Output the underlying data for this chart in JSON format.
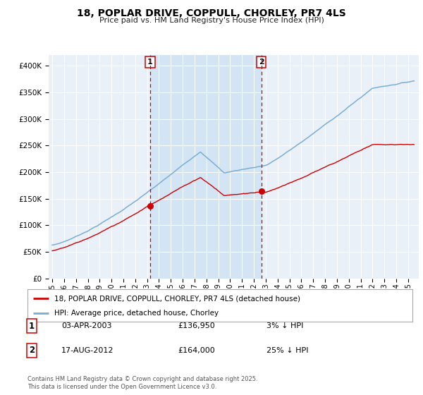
{
  "title": "18, POPLAR DRIVE, COPPULL, CHORLEY, PR7 4LS",
  "subtitle": "Price paid vs. HM Land Registry's House Price Index (HPI)",
  "legend_house": "18, POPLAR DRIVE, COPPULL, CHORLEY, PR7 4LS (detached house)",
  "legend_hpi": "HPI: Average price, detached house, Chorley",
  "sale1_date": "03-APR-2003",
  "sale1_price": 136950,
  "sale1_pct": "3% ↓ HPI",
  "sale2_date": "17-AUG-2012",
  "sale2_price": 164000,
  "sale2_pct": "25% ↓ HPI",
  "footnote": "Contains HM Land Registry data © Crown copyright and database right 2025.\nThis data is licensed under the Open Government Licence v3.0.",
  "house_color": "#cc0000",
  "hpi_color": "#7aadd4",
  "background_color": "#ffffff",
  "plot_bg_color": "#eaf0f8",
  "shade_color": "#d0e4f5",
  "vline_color": "#cc0000",
  "grid_color": "#ffffff",
  "ylim": [
    0,
    420000
  ],
  "yticks": [
    0,
    50000,
    100000,
    150000,
    200000,
    250000,
    300000,
    350000,
    400000
  ],
  "sale1_x_year": 2003.25,
  "sale2_x_year": 2012.63,
  "xmin": 1994.7,
  "xmax": 2025.9
}
